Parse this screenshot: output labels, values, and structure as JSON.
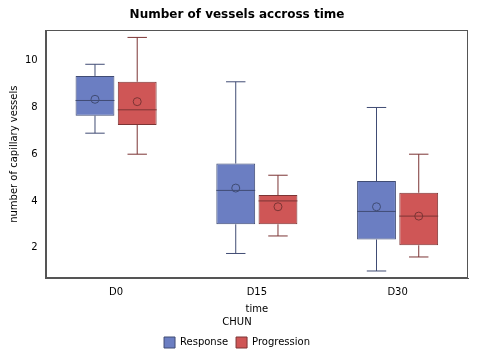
{
  "chart_data": {
    "type": "boxplot",
    "title": "Number of vessels accross time",
    "x_label": "time",
    "y_label": "number of capillary vessels",
    "categories": [
      "D0",
      "D15",
      "D30"
    ],
    "legend": "bottom",
    "legend_title": "CHUN",
    "grid": false,
    "ylim": [
      0.7,
      11.3
    ],
    "yticks": [
      2,
      4,
      6,
      8,
      10
    ],
    "series": [
      {
        "name": "Response",
        "color": "#6b7ec2",
        "values": [
          {
            "min": 6.9,
            "q1": 7.65,
            "median": 8.3,
            "q3": 9.35,
            "max": 9.85,
            "mean": 8.35
          },
          {
            "min": 1.75,
            "q1": 3.0,
            "median": 4.45,
            "q3": 5.6,
            "max": 9.1,
            "mean": 4.55
          },
          {
            "min": 1.0,
            "q1": 2.35,
            "median": 3.55,
            "q3": 4.85,
            "max": 8.0,
            "mean": 3.75
          }
        ]
      },
      {
        "name": "Progression",
        "color": "#cf5656",
        "values": [
          {
            "min": 6.0,
            "q1": 7.25,
            "median": 7.9,
            "q3": 9.1,
            "max": 11.0,
            "mean": 8.25
          },
          {
            "min": 2.5,
            "q1": 3.0,
            "median": 4.0,
            "q3": 4.25,
            "max": 5.1,
            "mean": 3.75
          },
          {
            "min": 1.6,
            "q1": 2.1,
            "median": 3.35,
            "q3": 4.35,
            "max": 6.0,
            "mean": 3.35
          }
        ]
      }
    ]
  }
}
